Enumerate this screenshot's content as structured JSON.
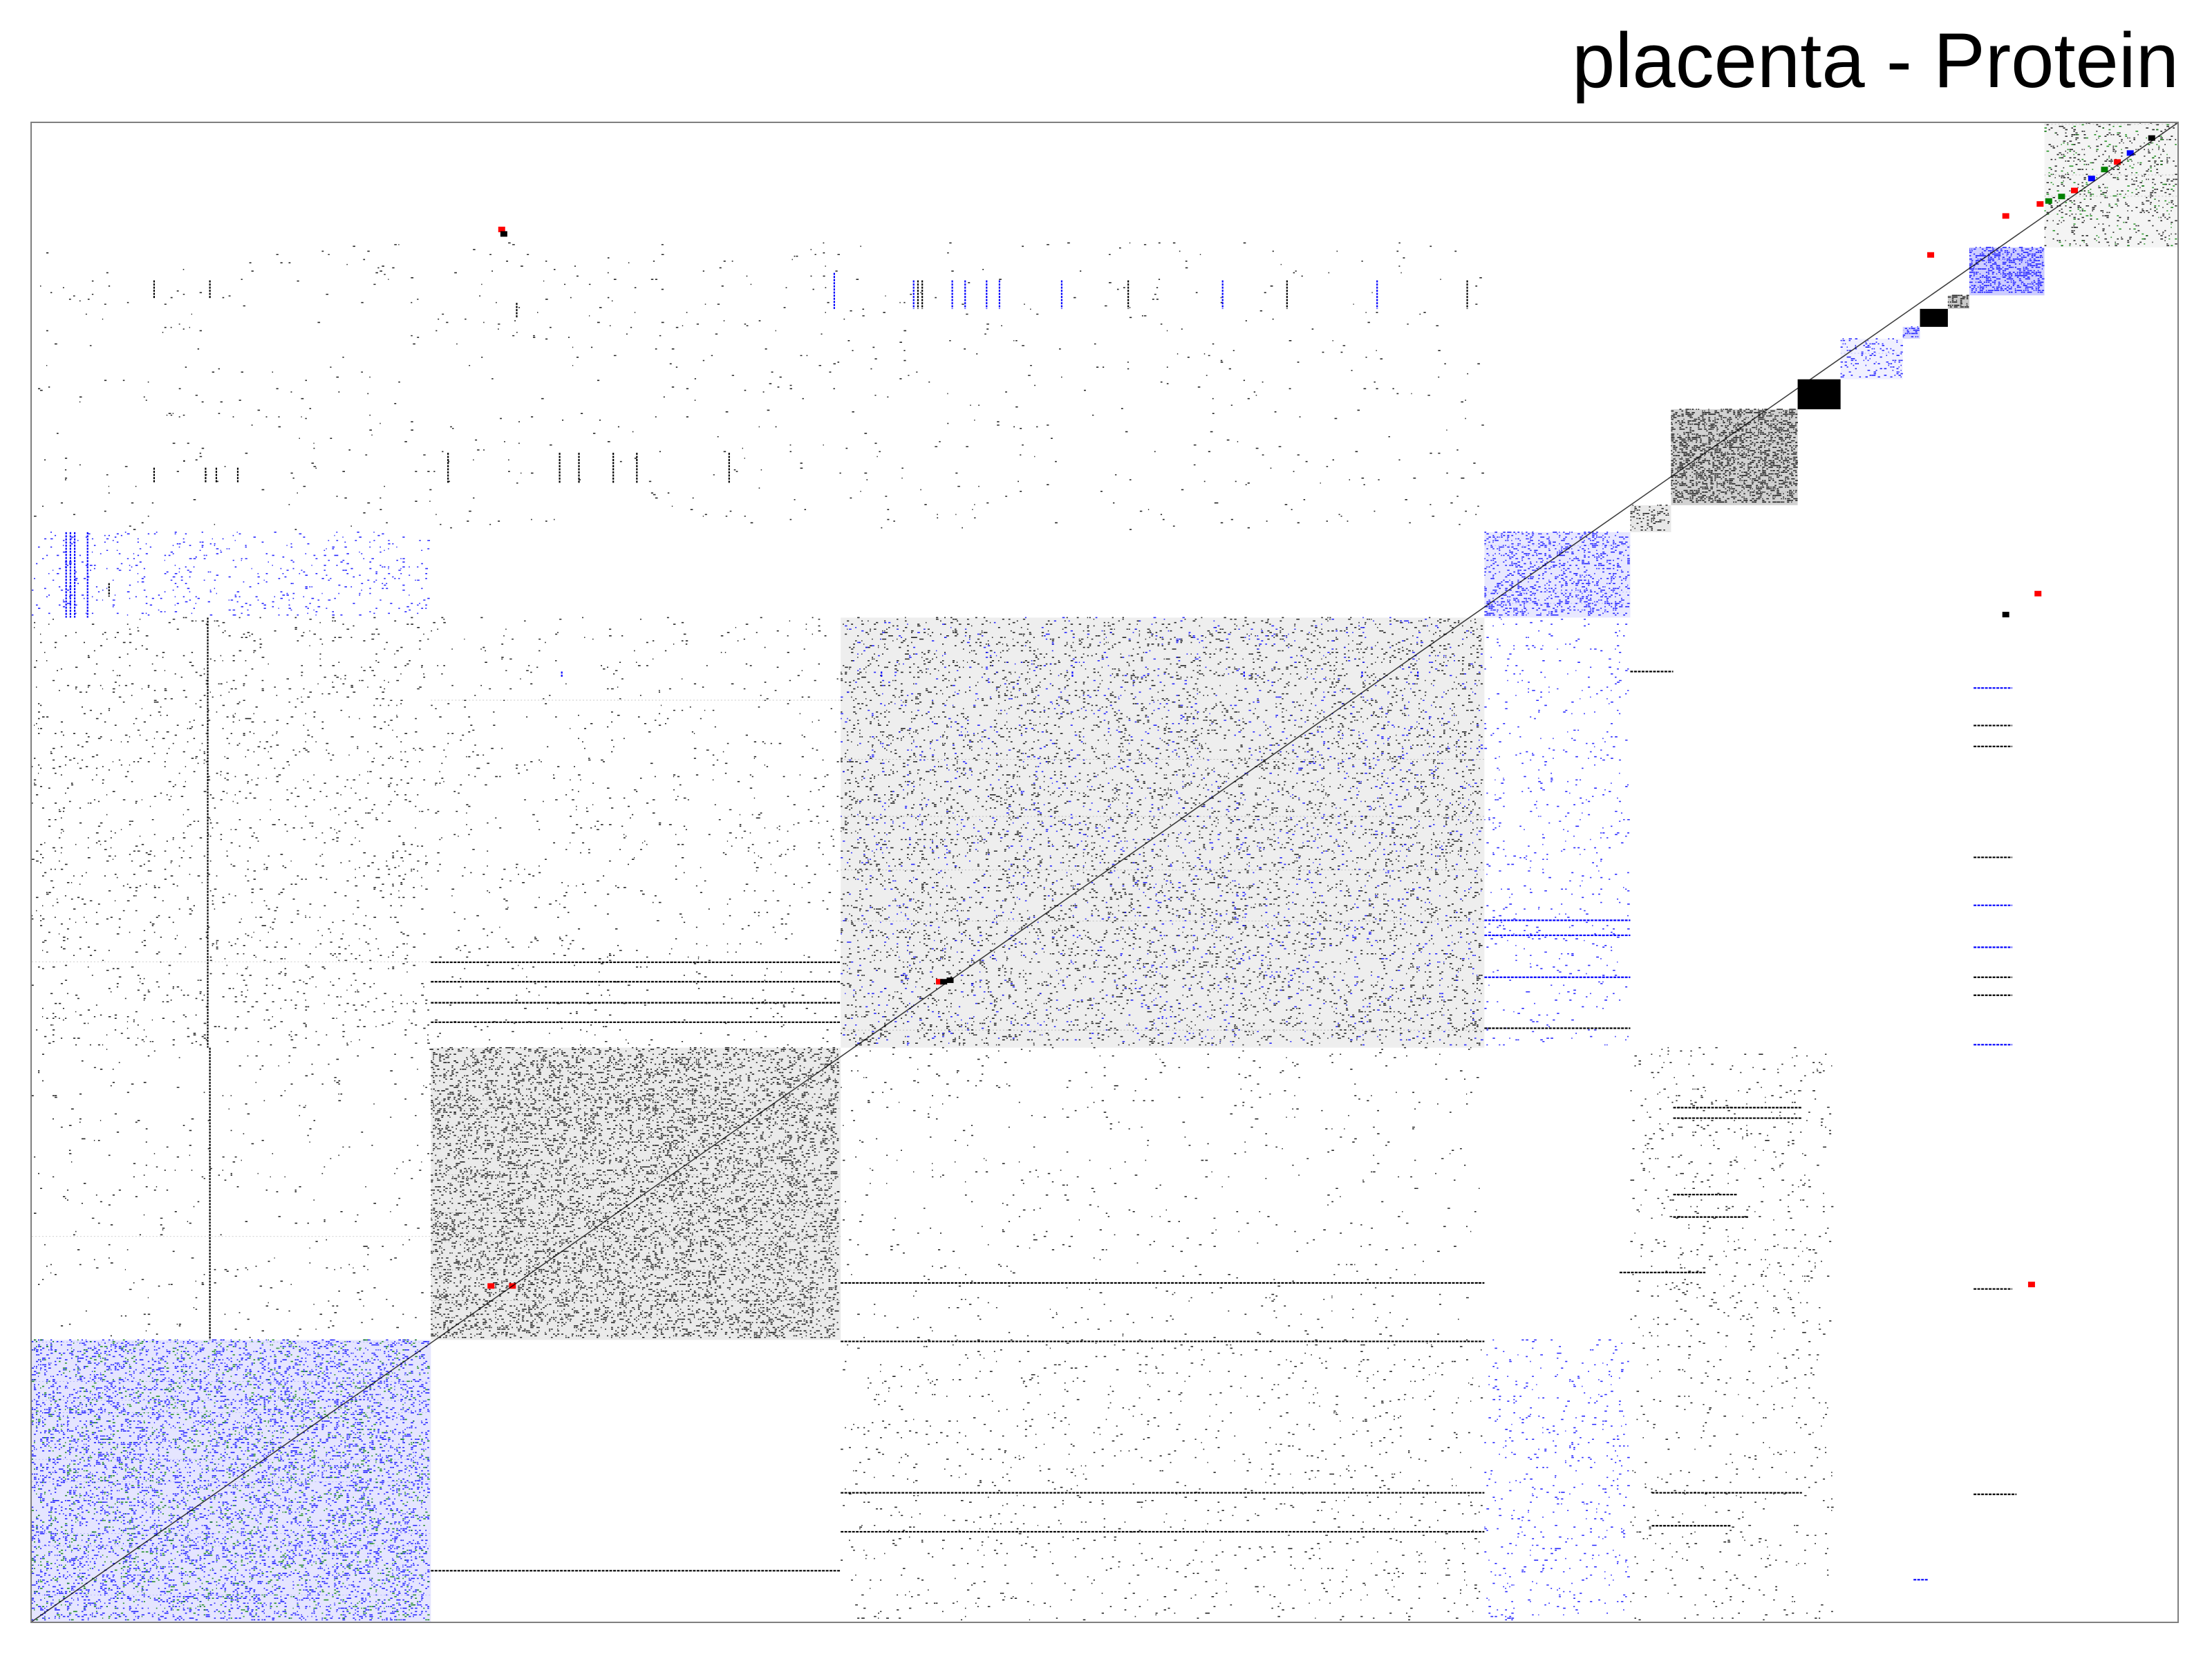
{
  "chart_data": {
    "type": "heatmap",
    "title": "placenta - Protein",
    "xlabel": "",
    "ylabel": "",
    "legend": "none",
    "grid": false,
    "colors": {
      "black": "#000000",
      "blue": "#0000ff",
      "green": "#008000",
      "red": "#ff0000",
      "frame": "#7f7f7f",
      "background": "#ffffff"
    },
    "diagonal_direction": "bottom-left to top-right",
    "blocks": [
      {
        "id": 1,
        "x": [
          0.0,
          0.186
        ],
        "y": [
          0.0,
          0.188
        ],
        "color": "blue",
        "density": 0.34,
        "secondary": "green"
      },
      {
        "id": 2,
        "x": [
          0.186,
          0.377
        ],
        "y": [
          0.188,
          0.383
        ],
        "color": "black",
        "density": 0.28
      },
      {
        "id": 3,
        "x": [
          0.377,
          0.677
        ],
        "y": [
          0.383,
          0.67
        ],
        "color": "black",
        "density": 0.22,
        "secondary": "blue"
      },
      {
        "id": 4,
        "x": [
          0.677,
          0.745
        ],
        "y": [
          0.67,
          0.727
        ],
        "color": "blue",
        "density": 0.3
      },
      {
        "id": 5,
        "x": [
          0.745,
          0.764
        ],
        "y": [
          0.727,
          0.745
        ],
        "color": "black",
        "density": 0.3
      },
      {
        "id": 6,
        "x": [
          0.764,
          0.823
        ],
        "y": [
          0.745,
          0.809
        ],
        "color": "black",
        "density": 0.6
      },
      {
        "id": 7,
        "x": [
          0.823,
          0.843
        ],
        "y": [
          0.809,
          0.829
        ],
        "color": "black",
        "density": 0.92
      },
      {
        "id": 8,
        "x": [
          0.843,
          0.872
        ],
        "y": [
          0.829,
          0.856
        ],
        "color": "blue",
        "density": 0.2
      },
      {
        "id": 9,
        "x": [
          0.872,
          0.88
        ],
        "y": [
          0.856,
          0.864
        ],
        "color": "blue",
        "density": 0.55
      },
      {
        "id": 10,
        "x": [
          0.88,
          0.893
        ],
        "y": [
          0.864,
          0.876
        ],
        "color": "black",
        "density": 0.9
      },
      {
        "id": 11,
        "x": [
          0.893,
          0.903
        ],
        "y": [
          0.876,
          0.885
        ],
        "color": "black",
        "density": 0.7
      },
      {
        "id": 12,
        "x": [
          0.903,
          0.938
        ],
        "y": [
          0.885,
          0.917
        ],
        "color": "blue",
        "density": 0.65
      },
      {
        "id": 13,
        "x": [
          0.938,
          1.0
        ],
        "y": [
          0.917,
          1.0
        ],
        "color": "black",
        "density": 0.15,
        "secondary": "green"
      }
    ],
    "off_diagonal": [
      {
        "x": [
          0.0,
          0.186
        ],
        "y": [
          0.67,
          0.727
        ],
        "color": "blue",
        "density": 0.05
      },
      {
        "x": [
          0.0,
          0.186
        ],
        "y": [
          0.383,
          0.67
        ],
        "color": "black",
        "density": 0.03
      },
      {
        "x": [
          0.186,
          0.377
        ],
        "y": [
          0.383,
          0.67
        ],
        "color": "black",
        "density": 0.015
      },
      {
        "x": [
          0.0,
          0.377
        ],
        "y": [
          0.188,
          0.383
        ],
        "color": "black",
        "density": 0.01
      },
      {
        "x": [
          0.377,
          0.677
        ],
        "y": [
          0.0,
          0.188
        ],
        "color": "black",
        "density": 0.02
      },
      {
        "x": [
          0.377,
          0.677
        ],
        "y": [
          0.188,
          0.383
        ],
        "color": "black",
        "density": 0.01
      },
      {
        "x": [
          0.677,
          0.745
        ],
        "y": [
          0.0,
          0.188
        ],
        "color": "blue",
        "density": 0.04
      },
      {
        "x": [
          0.677,
          0.745
        ],
        "y": [
          0.383,
          0.67
        ],
        "color": "blue",
        "density": 0.03
      },
      {
        "x": [
          0.745,
          0.84
        ],
        "y": [
          0.188,
          0.383
        ],
        "color": "black",
        "density": 0.03
      },
      {
        "x": [
          0.745,
          0.84
        ],
        "y": [
          0.0,
          0.188
        ],
        "color": "black",
        "density": 0.02
      },
      {
        "x": [
          0.0,
          0.677
        ],
        "y": [
          0.727,
          0.92
        ],
        "color": "black",
        "density": 0.006
      }
    ],
    "vertical_streaks": [
      {
        "x": 0.016,
        "y": [
          0.67,
          0.727
        ],
        "color": "blue"
      },
      {
        "x": 0.018,
        "y": [
          0.67,
          0.727
        ],
        "color": "blue"
      },
      {
        "x": 0.02,
        "y": [
          0.67,
          0.727
        ],
        "color": "blue"
      },
      {
        "x": 0.026,
        "y": [
          0.67,
          0.727
        ],
        "color": "blue"
      },
      {
        "x": 0.036,
        "y": [
          0.684,
          0.693
        ],
        "color": "black"
      },
      {
        "x": 0.057,
        "y": [
          0.76,
          0.77
        ],
        "color": "black"
      },
      {
        "x": 0.057,
        "y": [
          0.883,
          0.895
        ],
        "color": "black"
      },
      {
        "x": 0.071,
        "y": [
          0.774,
          0.775
        ],
        "color": "black"
      },
      {
        "x": 0.081,
        "y": [
          0.76,
          0.77
        ],
        "color": "black"
      },
      {
        "x": 0.083,
        "y": [
          0.883,
          0.895
        ],
        "color": "black"
      },
      {
        "x": 0.086,
        "y": [
          0.76,
          0.77
        ],
        "color": "black"
      },
      {
        "x": 0.082,
        "y": [
          0.383,
          0.67
        ],
        "color": "black"
      },
      {
        "x": 0.083,
        "y": [
          0.188,
          0.383
        ],
        "color": "black"
      },
      {
        "x": 0.096,
        "y": [
          0.76,
          0.77
        ],
        "color": "black"
      },
      {
        "x": 0.226,
        "y": [
          0.87,
          0.88
        ],
        "color": "black"
      },
      {
        "x": 0.194,
        "y": [
          0.76,
          0.78
        ],
        "color": "black"
      },
      {
        "x": 0.246,
        "y": [
          0.76,
          0.78
        ],
        "color": "black"
      },
      {
        "x": 0.255,
        "y": [
          0.76,
          0.78
        ],
        "color": "black"
      },
      {
        "x": 0.271,
        "y": [
          0.76,
          0.78
        ],
        "color": "black"
      },
      {
        "x": 0.282,
        "y": [
          0.76,
          0.78
        ],
        "color": "black"
      },
      {
        "x": 0.325,
        "y": [
          0.76,
          0.78
        ],
        "color": "black"
      },
      {
        "x": 0.374,
        "y": [
          0.876,
          0.9
        ],
        "color": "blue"
      },
      {
        "x": 0.411,
        "y": [
          0.876,
          0.895
        ],
        "color": "blue"
      },
      {
        "x": 0.413,
        "y": [
          0.876,
          0.895
        ],
        "color": "black"
      },
      {
        "x": 0.415,
        "y": [
          0.876,
          0.895
        ],
        "color": "black"
      },
      {
        "x": 0.429,
        "y": [
          0.876,
          0.895
        ],
        "color": "blue"
      },
      {
        "x": 0.435,
        "y": [
          0.876,
          0.895
        ],
        "color": "blue"
      },
      {
        "x": 0.445,
        "y": [
          0.876,
          0.895
        ],
        "color": "blue"
      },
      {
        "x": 0.451,
        "y": [
          0.876,
          0.895
        ],
        "color": "blue"
      },
      {
        "x": 0.48,
        "y": [
          0.876,
          0.895
        ],
        "color": "blue"
      },
      {
        "x": 0.511,
        "y": [
          0.876,
          0.895
        ],
        "color": "black"
      },
      {
        "x": 0.555,
        "y": [
          0.876,
          0.895
        ],
        "color": "blue"
      },
      {
        "x": 0.585,
        "y": [
          0.876,
          0.895
        ],
        "color": "black"
      },
      {
        "x": 0.627,
        "y": [
          0.876,
          0.895
        ],
        "color": "blue"
      },
      {
        "x": 0.669,
        "y": [
          0.876,
          0.895
        ],
        "color": "black"
      },
      {
        "x": 0.247,
        "y": [
          0.63,
          0.634
        ],
        "color": "blue"
      },
      {
        "x": 0.396,
        "y": [
          0.63,
          0.634
        ],
        "color": "blue"
      },
      {
        "x": 0.485,
        "y": [
          0.63,
          0.634
        ],
        "color": "blue"
      },
      {
        "x": 0.565,
        "y": [
          0.63,
          0.634
        ],
        "color": "blue"
      },
      {
        "x": 0.62,
        "y": [
          0.63,
          0.634
        ],
        "color": "blue"
      },
      {
        "x": 0.646,
        "y": [
          0.63,
          0.634
        ],
        "color": "blue"
      }
    ],
    "horizontal_streaks": [
      {
        "y": 0.623,
        "x": [
          0.905,
          0.923
        ],
        "color": "blue"
      },
      {
        "y": 0.598,
        "x": [
          0.905,
          0.923
        ],
        "color": "black"
      },
      {
        "y": 0.584,
        "x": [
          0.905,
          0.923
        ],
        "color": "black"
      },
      {
        "y": 0.51,
        "x": [
          0.905,
          0.923
        ],
        "color": "black"
      },
      {
        "y": 0.478,
        "x": [
          0.905,
          0.923
        ],
        "color": "blue"
      },
      {
        "y": 0.45,
        "x": [
          0.905,
          0.923
        ],
        "color": "blue"
      },
      {
        "y": 0.43,
        "x": [
          0.905,
          0.923
        ],
        "color": "black"
      },
      {
        "y": 0.418,
        "x": [
          0.905,
          0.923
        ],
        "color": "black"
      },
      {
        "y": 0.385,
        "x": [
          0.905,
          0.923
        ],
        "color": "blue"
      },
      {
        "y": 0.222,
        "x": [
          0.905,
          0.923
        ],
        "color": "black"
      },
      {
        "y": 0.085,
        "x": [
          0.905,
          0.925
        ],
        "color": "black"
      },
      {
        "y": 0.028,
        "x": [
          0.877,
          0.884
        ],
        "color": "blue"
      },
      {
        "y": 0.343,
        "x": [
          0.765,
          0.825
        ],
        "color": "black"
      },
      {
        "y": 0.336,
        "x": [
          0.765,
          0.825
        ],
        "color": "black"
      },
      {
        "y": 0.285,
        "x": [
          0.765,
          0.795
        ],
        "color": "black"
      },
      {
        "y": 0.27,
        "x": [
          0.765,
          0.8
        ],
        "color": "black"
      },
      {
        "y": 0.233,
        "x": [
          0.74,
          0.78
        ],
        "color": "black"
      },
      {
        "y": 0.086,
        "x": [
          0.755,
          0.825
        ],
        "color": "black"
      },
      {
        "y": 0.064,
        "x": [
          0.755,
          0.792
        ],
        "color": "black"
      },
      {
        "y": 0.468,
        "x": [
          0.677,
          0.745
        ],
        "color": "blue"
      },
      {
        "y": 0.43,
        "x": [
          0.677,
          0.745
        ],
        "color": "blue"
      },
      {
        "y": 0.458,
        "x": [
          0.677,
          0.745
        ],
        "color": "blue"
      },
      {
        "y": 0.634,
        "x": [
          0.745,
          0.765
        ],
        "color": "black"
      },
      {
        "y": 0.086,
        "x": [
          0.377,
          0.677
        ],
        "color": "black"
      },
      {
        "y": 0.034,
        "x": [
          0.186,
          0.377
        ],
        "color": "black"
      },
      {
        "y": 0.226,
        "x": [
          0.377,
          0.677
        ],
        "color": "black"
      },
      {
        "y": 0.187,
        "x": [
          0.377,
          0.677
        ],
        "color": "black"
      },
      {
        "y": 0.06,
        "x": [
          0.377,
          0.677
        ],
        "color": "black"
      },
      {
        "y": 0.44,
        "x": [
          0.186,
          0.377
        ],
        "color": "black"
      },
      {
        "y": 0.427,
        "x": [
          0.186,
          0.377
        ],
        "color": "black"
      },
      {
        "y": 0.413,
        "x": [
          0.186,
          0.377
        ],
        "color": "black"
      },
      {
        "y": 0.4,
        "x": [
          0.186,
          0.377
        ],
        "color": "black"
      },
      {
        "y": 0.396,
        "x": [
          0.677,
          0.745
        ],
        "color": "black"
      }
    ],
    "point_clusters": [
      {
        "x": 0.423,
        "y": 0.427,
        "color": "red"
      },
      {
        "x": 0.425,
        "y": 0.427,
        "color": "black"
      },
      {
        "x": 0.428,
        "y": 0.428,
        "color": "black"
      },
      {
        "x": 0.214,
        "y": 0.224,
        "color": "red"
      },
      {
        "x": 0.224,
        "y": 0.224,
        "color": "red"
      },
      {
        "x": 0.219,
        "y": 0.929,
        "color": "red"
      },
      {
        "x": 0.22,
        "y": 0.926,
        "color": "black"
      },
      {
        "x": 0.885,
        "y": 0.912,
        "color": "red"
      },
      {
        "x": 0.92,
        "y": 0.938,
        "color": "red"
      },
      {
        "x": 0.936,
        "y": 0.946,
        "color": "red"
      },
      {
        "x": 0.94,
        "y": 0.948,
        "color": "green"
      },
      {
        "x": 0.946,
        "y": 0.951,
        "color": "green"
      },
      {
        "x": 0.952,
        "y": 0.955,
        "color": "red"
      },
      {
        "x": 0.96,
        "y": 0.963,
        "color": "blue"
      },
      {
        "x": 0.966,
        "y": 0.969,
        "color": "green"
      },
      {
        "x": 0.972,
        "y": 0.974,
        "color": "red"
      },
      {
        "x": 0.978,
        "y": 0.98,
        "color": "blue"
      },
      {
        "x": 0.988,
        "y": 0.99,
        "color": "black"
      },
      {
        "x": 0.92,
        "y": 0.672,
        "color": "black"
      },
      {
        "x": 0.935,
        "y": 0.686,
        "color": "red"
      },
      {
        "x": 0.932,
        "y": 0.225,
        "color": "red"
      }
    ]
  }
}
